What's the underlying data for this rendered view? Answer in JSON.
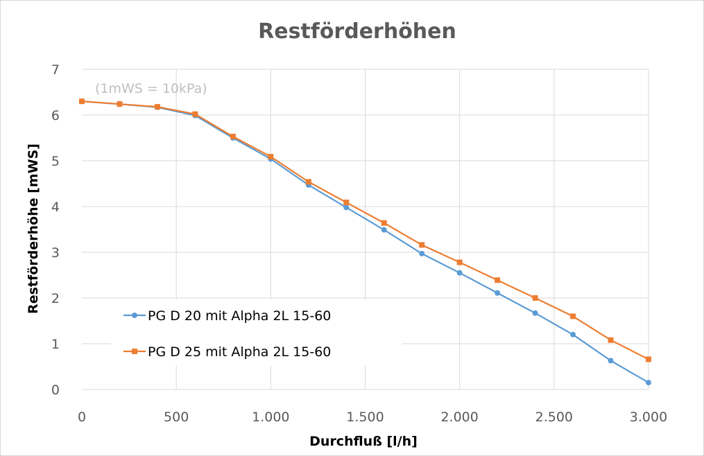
{
  "chart_data": {
    "type": "line",
    "title": "Restförderhöhen",
    "xlabel": "Durchfluß [l/h]",
    "ylabel": "Restförderhöhe [mWS]",
    "annotation": "(1mWS = 10kPa)",
    "xlim": [
      0,
      3000
    ],
    "ylim": [
      0,
      7
    ],
    "x_ticks": [
      0,
      500,
      1000,
      1500,
      2000,
      2500,
      3000
    ],
    "x_tick_labels": [
      "0",
      "500",
      "1.000",
      "1.500",
      "2.000",
      "2.500",
      "3.000"
    ],
    "y_ticks": [
      0,
      1,
      2,
      3,
      4,
      5,
      6,
      7
    ],
    "y_tick_labels": [
      "0",
      "1",
      "2",
      "3",
      "4",
      "5",
      "6",
      "7"
    ],
    "grid": true,
    "legend_position": "lower-left",
    "x": [
      0,
      200,
      400,
      600,
      800,
      1000,
      1200,
      1400,
      1600,
      1800,
      2000,
      2200,
      2400,
      2600,
      2800,
      3000
    ],
    "series": [
      {
        "name": "PG D 20 mit Alpha 2L 15-60",
        "color": "#5b9bd5",
        "marker": "circle",
        "values": [
          6.3,
          6.24,
          6.17,
          5.99,
          5.5,
          5.04,
          4.47,
          3.98,
          3.49,
          2.97,
          2.55,
          2.11,
          1.67,
          1.2,
          0.63,
          0.15
        ]
      },
      {
        "name": "PG D 25 mit Alpha 2L 15-60",
        "color": "#ed7d31",
        "marker": "square",
        "values": [
          6.3,
          6.24,
          6.18,
          6.02,
          5.53,
          5.09,
          4.54,
          4.09,
          3.64,
          3.16,
          2.78,
          2.39,
          2.0,
          1.6,
          1.08,
          0.66
        ]
      }
    ]
  }
}
